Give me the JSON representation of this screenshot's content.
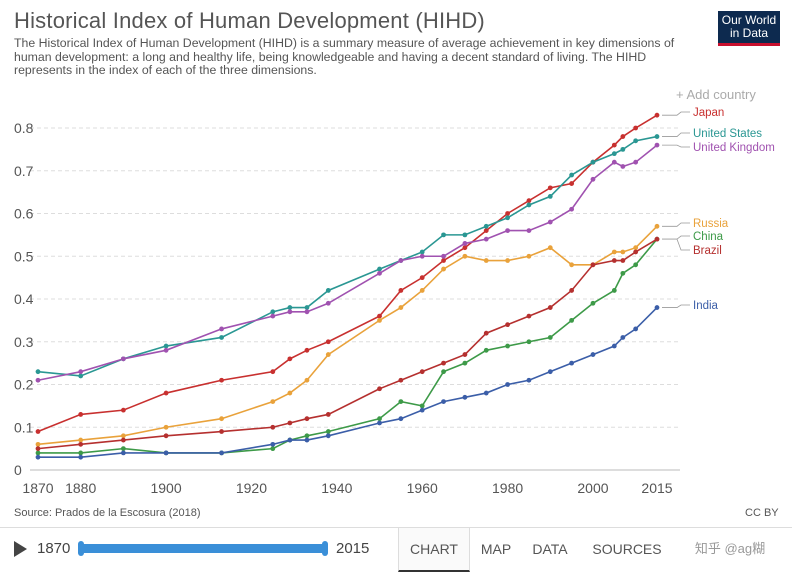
{
  "header": {
    "title": "Historical Index of Human Development (HIHD)",
    "subtitle": "The Historical Index of Human Development (HIHD) is a summary measure of average achievement in key dimensions of human development: a long and healthy life, being knowledgeable and having a decent standard of living. The HIHD represents in the index of each of the three dimensions.",
    "logo": "Our World in Data",
    "add_country": "+ Add country"
  },
  "footer": {
    "source": "Source: Prados de la Escosura (2018)",
    "license": "CC BY"
  },
  "controls": {
    "start": "1870",
    "end": "2015",
    "tabs": [
      "CHART",
      "MAP",
      "DATA",
      "SOURCES"
    ],
    "watermark": "知乎 @ag糊"
  },
  "chart_data": {
    "type": "line",
    "title": "Historical Index of Human Development (HIHD)",
    "xlabel": "",
    "ylabel": "",
    "xlim": [
      1870,
      2015
    ],
    "ylim": [
      0,
      0.8
    ],
    "xticks": [
      1870,
      1880,
      1900,
      1920,
      1940,
      1960,
      1980,
      2000,
      2015
    ],
    "yticks": [
      0,
      0.1,
      0.2,
      0.3,
      0.4,
      0.5,
      0.6,
      0.7,
      0.8
    ],
    "grid": true,
    "legend": "right (line-end labels)",
    "x": [
      1870,
      1880,
      1890,
      1900,
      1913,
      1925,
      1929,
      1933,
      1938,
      1950,
      1955,
      1960,
      1965,
      1970,
      1975,
      1980,
      1985,
      1990,
      1995,
      2000,
      2005,
      2007,
      2010,
      2015
    ],
    "series": [
      {
        "name": "Japan",
        "color": "#c8302f",
        "values": [
          0.09,
          0.13,
          0.14,
          0.18,
          0.21,
          0.23,
          0.26,
          0.28,
          0.3,
          0.36,
          0.42,
          0.45,
          0.49,
          0.52,
          0.56,
          0.6,
          0.63,
          0.66,
          0.67,
          0.72,
          0.76,
          0.78,
          0.8,
          0.83
        ]
      },
      {
        "name": "United States",
        "color": "#2a9793",
        "values": [
          0.23,
          0.22,
          0.26,
          0.29,
          0.31,
          0.37,
          0.38,
          0.38,
          0.42,
          0.47,
          0.49,
          0.51,
          0.55,
          0.55,
          0.57,
          0.59,
          0.62,
          0.64,
          0.69,
          0.72,
          0.74,
          0.75,
          0.77,
          0.78
        ]
      },
      {
        "name": "United Kingdom",
        "color": "#a052b0",
        "values": [
          0.21,
          0.23,
          0.26,
          0.28,
          0.33,
          0.36,
          0.37,
          0.37,
          0.39,
          0.46,
          0.49,
          0.5,
          0.5,
          0.53,
          0.54,
          0.56,
          0.56,
          0.58,
          0.61,
          0.68,
          0.72,
          0.71,
          0.72,
          0.76
        ]
      },
      {
        "name": "Russia",
        "color": "#e9a23b",
        "values": [
          0.06,
          0.07,
          0.08,
          0.1,
          0.12,
          0.16,
          0.18,
          0.21,
          0.27,
          0.35,
          0.38,
          0.42,
          0.47,
          0.5,
          0.49,
          0.49,
          0.5,
          0.52,
          0.48,
          0.48,
          0.51,
          0.51,
          0.52,
          0.57
        ]
      },
      {
        "name": "China",
        "color": "#3d9a48",
        "values": [
          0.04,
          0.04,
          0.05,
          0.04,
          0.04,
          0.05,
          0.07,
          0.08,
          0.09,
          0.12,
          0.16,
          0.15,
          0.23,
          0.25,
          0.28,
          0.29,
          0.3,
          0.31,
          0.35,
          0.39,
          0.42,
          0.46,
          0.48,
          0.54
        ]
      },
      {
        "name": "Brazil",
        "color": "#b5302f",
        "values": [
          0.05,
          0.06,
          0.07,
          0.08,
          0.09,
          0.1,
          0.11,
          0.12,
          0.13,
          0.19,
          0.21,
          0.23,
          0.25,
          0.27,
          0.32,
          0.34,
          0.36,
          0.38,
          0.42,
          0.48,
          0.49,
          0.49,
          0.51,
          0.54
        ]
      },
      {
        "name": "India",
        "color": "#3b5ea8",
        "values": [
          0.03,
          0.03,
          0.04,
          0.04,
          0.04,
          0.06,
          0.07,
          0.07,
          0.08,
          0.11,
          0.12,
          0.14,
          0.16,
          0.17,
          0.18,
          0.2,
          0.21,
          0.23,
          0.25,
          0.27,
          0.29,
          0.31,
          0.33,
          0.38
        ]
      }
    ],
    "label_positions_note": ""
  }
}
